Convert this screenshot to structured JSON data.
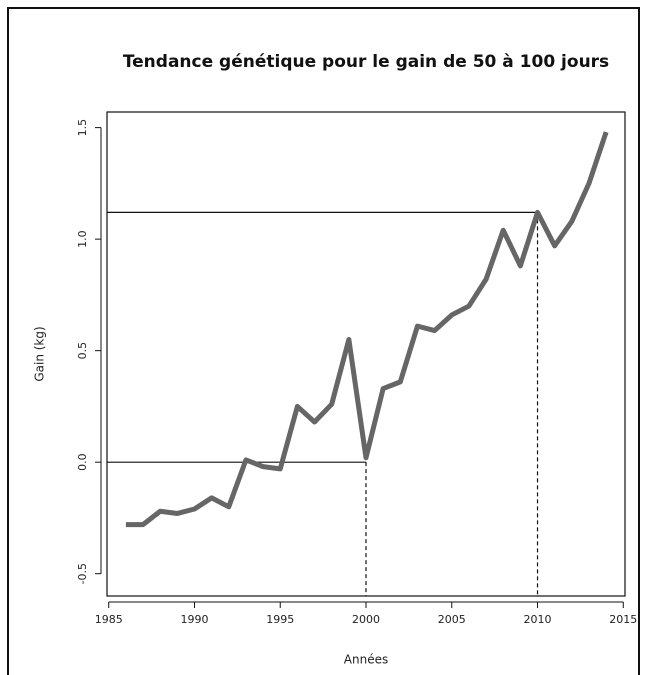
{
  "chart_data": {
    "type": "line",
    "title": "Tendance génétique pour le gain de 50 à 100 jours",
    "x_label": "Années",
    "y_label": "Gain (kg)",
    "x": [
      1986,
      1987,
      1988,
      1989,
      1990,
      1991,
      1992,
      1993,
      1994,
      1995,
      1996,
      1997,
      1998,
      1999,
      2000,
      2001,
      2002,
      2003,
      2004,
      2005,
      2006,
      2007,
      2008,
      2009,
      2010,
      2011,
      2012,
      2013,
      2014
    ],
    "values": [
      -0.28,
      -0.28,
      -0.22,
      -0.23,
      -0.21,
      -0.16,
      -0.2,
      0.01,
      -0.02,
      -0.03,
      0.25,
      0.18,
      0.26,
      0.55,
      0.02,
      0.33,
      0.36,
      0.61,
      0.59,
      0.66,
      0.7,
      0.82,
      1.04,
      0.88,
      1.12,
      0.97,
      1.08,
      1.25,
      1.48
    ],
    "color": "#666666",
    "xlim": [
      1984.9,
      2015.1
    ],
    "xticks": [
      1985,
      1990,
      1995,
      2000,
      2005,
      2010,
      2015
    ],
    "ylim": [
      -0.6,
      1.57
    ],
    "yticks": [
      {
        "value": -0.5,
        "label": "-0.5"
      },
      {
        "value": 0,
        "label": "0.0"
      },
      {
        "value": 0.5,
        "label": "0.5"
      },
      {
        "value": 1,
        "label": "1.0"
      },
      {
        "value": 1.5,
        "label": "1.5"
      }
    ],
    "reference_lines": [
      {
        "x": 2000,
        "y": 0
      },
      {
        "x": 2010,
        "y": 1.12
      }
    ]
  }
}
